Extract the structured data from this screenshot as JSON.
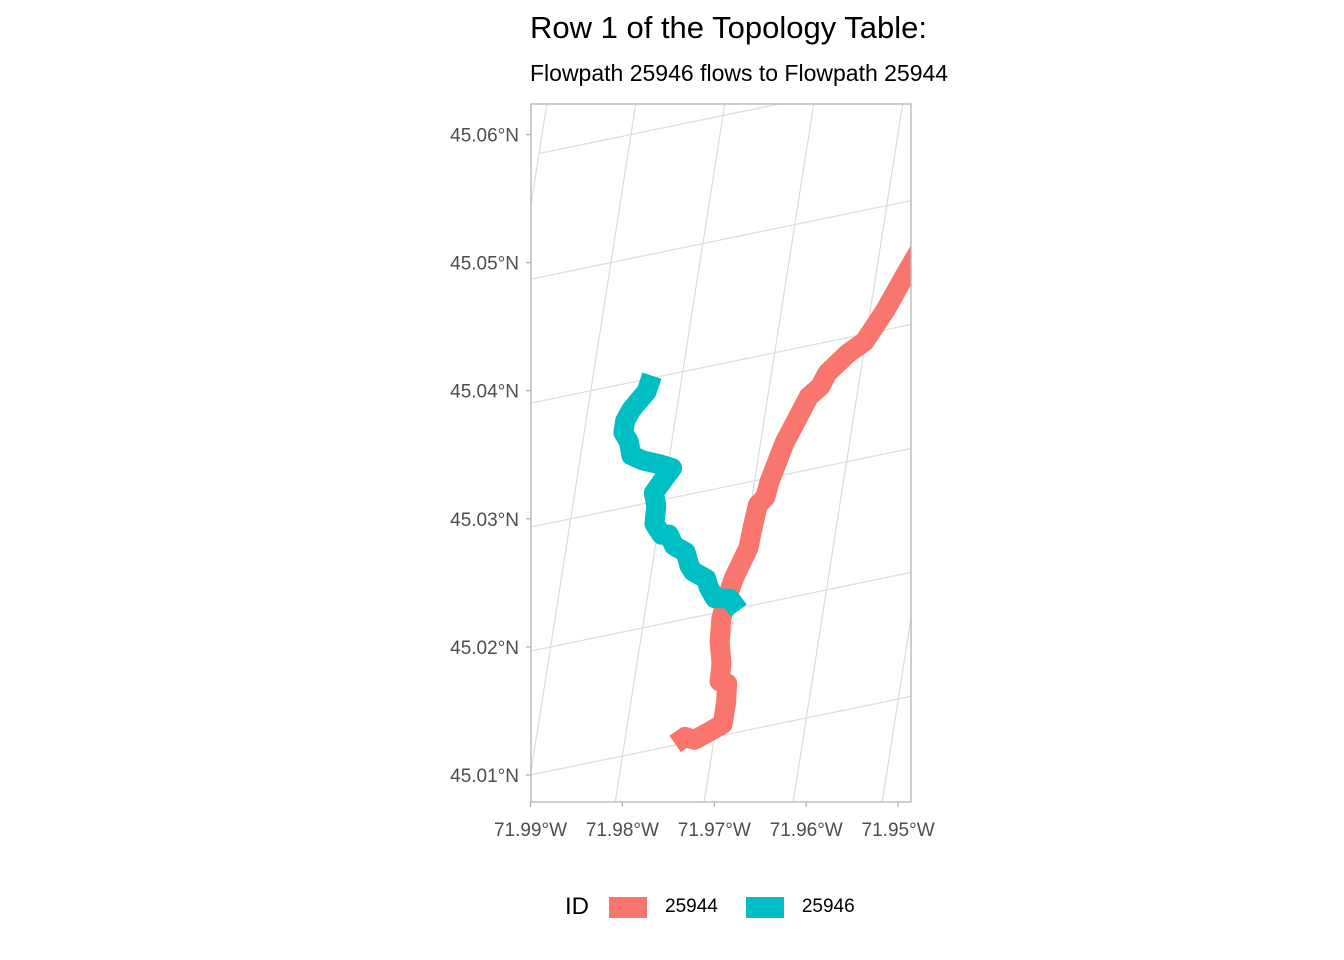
{
  "chart_data": {
    "type": "map",
    "title": "Row 1 of the Topology Table:",
    "subtitle": "Flowpath 25946 flows to Flowpath 25944",
    "grid": true,
    "legend_position": "bottom",
    "legend": {
      "title": "ID",
      "items": [
        {
          "label": "25944",
          "color": "#F8766D"
        },
        {
          "label": "25946",
          "color": "#00BFC4"
        }
      ]
    },
    "x_ticks": [
      {
        "value": -71.99,
        "label": "71.99°W"
      },
      {
        "value": -71.98,
        "label": "71.98°W"
      },
      {
        "value": -71.97,
        "label": "71.97°W"
      },
      {
        "value": -71.96,
        "label": "71.96°W"
      },
      {
        "value": -71.95,
        "label": "71.95°W"
      }
    ],
    "y_ticks": [
      {
        "value": 45.06,
        "label": "45.06°N"
      },
      {
        "value": 45.05,
        "label": "45.05°N"
      },
      {
        "value": 45.04,
        "label": "45.04°N"
      },
      {
        "value": 45.03,
        "label": "45.03°N"
      },
      {
        "value": 45.02,
        "label": "45.02°N"
      },
      {
        "value": 45.01,
        "label": "45.01°N"
      }
    ],
    "series": [
      {
        "name": "25944",
        "color": "#F8766D",
        "coords": [
          [
            -71.9743,
            45.0101
          ],
          [
            -71.9733,
            45.0105
          ],
          [
            -71.9722,
            45.0101
          ],
          [
            -71.9707,
            45.0105
          ],
          [
            -71.9693,
            45.0109
          ],
          [
            -71.9693,
            45.0118
          ],
          [
            -71.9693,
            45.0126
          ],
          [
            -71.9695,
            45.0141
          ],
          [
            -71.9704,
            45.0144
          ],
          [
            -71.9705,
            45.0158
          ],
          [
            -71.9711,
            45.0176
          ],
          [
            -71.9713,
            45.0194
          ],
          [
            -71.9711,
            45.0208
          ],
          [
            -71.9706,
            45.0225
          ],
          [
            -71.9695,
            45.0247
          ],
          [
            -71.9694,
            45.0263
          ],
          [
            -71.9692,
            45.028
          ],
          [
            -71.9685,
            45.0285
          ],
          [
            -71.9683,
            45.0297
          ],
          [
            -71.9673,
            45.0326
          ],
          [
            -71.9663,
            45.0343
          ],
          [
            -71.9654,
            45.0359
          ],
          [
            -71.9643,
            45.0365
          ],
          [
            -71.9637,
            45.0375
          ],
          [
            -71.9618,
            45.0387
          ],
          [
            -71.9601,
            45.0394
          ],
          [
            -71.9583,
            45.0416
          ],
          [
            -71.9567,
            45.0441
          ],
          [
            -71.9555,
            45.0459
          ],
          [
            -71.9533,
            45.0472
          ],
          [
            -71.9525,
            45.0492
          ],
          [
            -71.9527,
            45.05
          ],
          [
            -71.9522,
            45.0508
          ],
          [
            -71.9518,
            45.0518
          ],
          [
            -71.9506,
            45.0536
          ],
          [
            -71.9504,
            45.0555
          ],
          [
            -71.9492,
            45.0562
          ],
          [
            -71.9483,
            45.0575
          ],
          [
            -71.9482,
            45.0592
          ]
        ]
      },
      {
        "name": "25946",
        "color": "#00BFC4",
        "coords": [
          [
            -71.9695,
            45.0198
          ],
          [
            -71.9707,
            45.0209
          ],
          [
            -71.9724,
            45.0212
          ],
          [
            -71.9733,
            45.0222
          ],
          [
            -71.9737,
            45.0229
          ],
          [
            -71.9753,
            45.0237
          ],
          [
            -71.9758,
            45.0242
          ],
          [
            -71.9765,
            45.0254
          ],
          [
            -71.9779,
            45.0261
          ],
          [
            -71.9787,
            45.0271
          ],
          [
            -71.9795,
            45.0272
          ],
          [
            -71.9805,
            45.0282
          ],
          [
            -71.9806,
            45.0296
          ],
          [
            -71.9811,
            45.0307
          ],
          [
            -71.9802,
            45.0317
          ],
          [
            -71.9795,
            45.0324
          ],
          [
            -71.9809,
            45.0329
          ],
          [
            -71.9829,
            45.0335
          ],
          [
            -71.9843,
            45.0341
          ],
          [
            -71.9848,
            45.0352
          ],
          [
            -71.9856,
            45.0361
          ],
          [
            -71.9856,
            45.037
          ],
          [
            -71.9851,
            45.0378
          ],
          [
            -71.9837,
            45.039
          ],
          [
            -71.9834,
            45.0402
          ]
        ]
      }
    ]
  }
}
